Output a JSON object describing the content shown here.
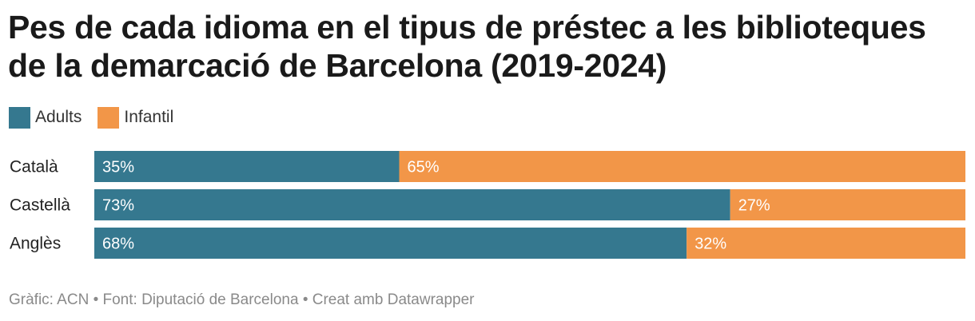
{
  "header": {
    "title": "Pes de cada idioma en el tipus de préstec a les biblioteques de la demarcació de Barcelona (2019-2024)"
  },
  "footer": {
    "source": "Gràfic: ACN • Font: Diputació de Barcelona • Creat amb Datawrapper"
  },
  "colors": {
    "adults": "#35788f",
    "infantil": "#f29648"
  },
  "chart_data": {
    "type": "bar",
    "orientation": "horizontal",
    "stacked": true,
    "normalized": true,
    "title": "Pes de cada idioma en el tipus de préstec a les biblioteques de la demarcació de Barcelona (2019-2024)",
    "categories": [
      "Català",
      "Castellà",
      "Anglès"
    ],
    "series": [
      {
        "name": "Adults",
        "values": [
          35,
          73,
          68
        ],
        "labels": [
          "35%",
          "73%",
          "68%"
        ]
      },
      {
        "name": "Infantil",
        "values": [
          65,
          27,
          32
        ],
        "labels": [
          "65%",
          "27%",
          "32%"
        ]
      }
    ],
    "unit": "%",
    "xlim": [
      0,
      100
    ],
    "legend": "top-left"
  }
}
